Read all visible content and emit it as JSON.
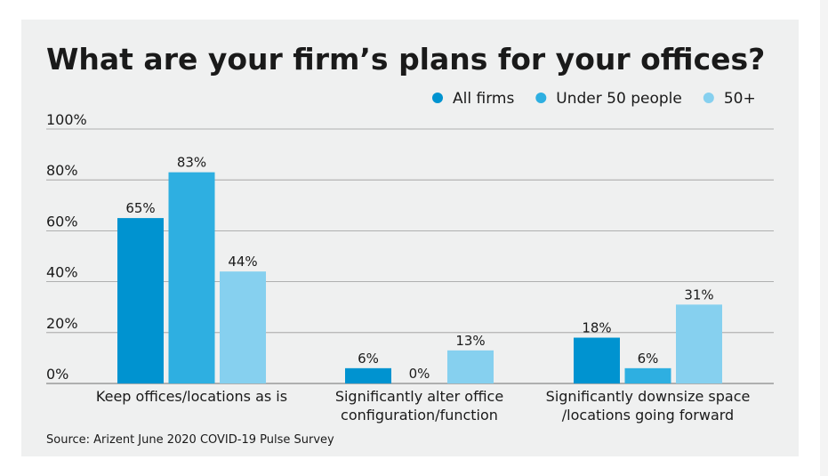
{
  "chart_data": {
    "type": "bar",
    "title": "What are your firm’s plans for your offices?",
    "categories": [
      "Keep offices/locations as is",
      "Significantly alter office configuration/function",
      "Significantly downsize space /locations going forward"
    ],
    "category_lines": [
      [
        "Keep offices/locations as is"
      ],
      [
        "Significantly alter office",
        "configuration/function"
      ],
      [
        "Significantly downsize space",
        "/locations going forward"
      ]
    ],
    "series": [
      {
        "name": "All firms",
        "color": "#0093d0",
        "values": [
          65,
          6,
          18
        ]
      },
      {
        "name": "Under 50 people",
        "color": "#2eafe1",
        "values": [
          83,
          0,
          6
        ]
      },
      {
        "name": "50+",
        "color": "#86d0ef",
        "values": [
          44,
          13,
          31
        ]
      }
    ],
    "ylim": [
      0,
      100
    ],
    "yticks": [
      0,
      20,
      40,
      60,
      80,
      100
    ],
    "ytick_suffix": "%",
    "grid": true,
    "legend": "top-right",
    "xlabel": "",
    "ylabel": "",
    "source": "Source: Arizent June 2020 COVID-19 Pulse Survey"
  }
}
